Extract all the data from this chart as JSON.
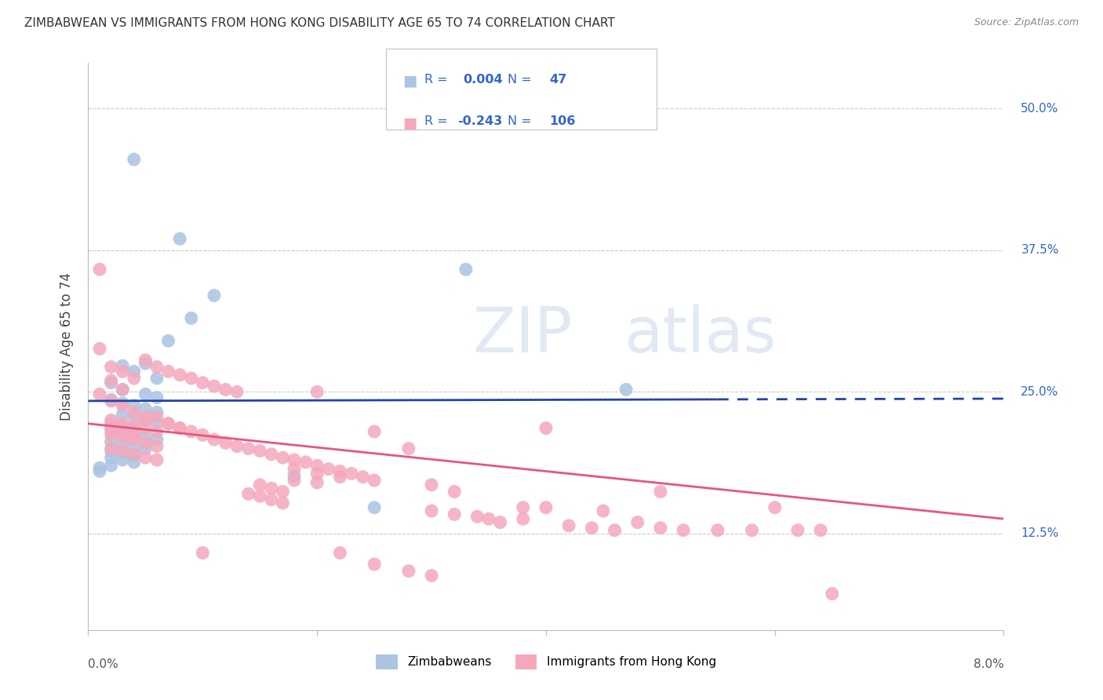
{
  "title": "ZIMBABWEAN VS IMMIGRANTS FROM HONG KONG DISABILITY AGE 65 TO 74 CORRELATION CHART",
  "source": "Source: ZipAtlas.com",
  "ylabel": "Disability Age 65 to 74",
  "ytick_labels": [
    "12.5%",
    "25.0%",
    "37.5%",
    "50.0%"
  ],
  "ytick_values": [
    0.125,
    0.25,
    0.375,
    0.5
  ],
  "xlim": [
    0.0,
    0.08
  ],
  "ylim": [
    0.04,
    0.54
  ],
  "zim_color": "#aac4e2",
  "hk_color": "#f5a8bc",
  "zim_line_color": "#2244aa",
  "hk_line_color": "#e85580",
  "zim_R": 0.004,
  "zim_N": 47,
  "hk_R": -0.243,
  "hk_N": 106,
  "watermark": "ZIPatlas",
  "legend_text_color": "#3366cc",
  "legend_border_color": "#cccccc",
  "grid_color": "#cccccc",
  "zim_line_y0": 0.242,
  "zim_line_y1": 0.244,
  "hk_line_y0": 0.222,
  "hk_line_y1": 0.138,
  "zim_data": [
    [
      0.004,
      0.455
    ],
    [
      0.008,
      0.385
    ],
    [
      0.011,
      0.335
    ],
    [
      0.009,
      0.315
    ],
    [
      0.007,
      0.295
    ],
    [
      0.005,
      0.275
    ],
    [
      0.003,
      0.273
    ],
    [
      0.004,
      0.268
    ],
    [
      0.006,
      0.262
    ],
    [
      0.002,
      0.258
    ],
    [
      0.003,
      0.252
    ],
    [
      0.005,
      0.248
    ],
    [
      0.006,
      0.245
    ],
    [
      0.002,
      0.243
    ],
    [
      0.003,
      0.24
    ],
    [
      0.004,
      0.238
    ],
    [
      0.005,
      0.235
    ],
    [
      0.006,
      0.232
    ],
    [
      0.003,
      0.23
    ],
    [
      0.004,
      0.228
    ],
    [
      0.005,
      0.225
    ],
    [
      0.006,
      0.223
    ],
    [
      0.002,
      0.222
    ],
    [
      0.003,
      0.22
    ],
    [
      0.004,
      0.218
    ],
    [
      0.002,
      0.216
    ],
    [
      0.003,
      0.214
    ],
    [
      0.004,
      0.212
    ],
    [
      0.005,
      0.21
    ],
    [
      0.006,
      0.208
    ],
    [
      0.002,
      0.206
    ],
    [
      0.003,
      0.204
    ],
    [
      0.004,
      0.202
    ],
    [
      0.005,
      0.2
    ],
    [
      0.002,
      0.198
    ],
    [
      0.003,
      0.196
    ],
    [
      0.004,
      0.194
    ],
    [
      0.002,
      0.192
    ],
    [
      0.003,
      0.19
    ],
    [
      0.004,
      0.188
    ],
    [
      0.018,
      0.176
    ],
    [
      0.002,
      0.185
    ],
    [
      0.001,
      0.183
    ],
    [
      0.001,
      0.18
    ],
    [
      0.025,
      0.148
    ],
    [
      0.033,
      0.358
    ],
    [
      0.047,
      0.252
    ]
  ],
  "hk_data": [
    [
      0.001,
      0.358
    ],
    [
      0.001,
      0.288
    ],
    [
      0.002,
      0.272
    ],
    [
      0.003,
      0.268
    ],
    [
      0.004,
      0.262
    ],
    [
      0.005,
      0.278
    ],
    [
      0.006,
      0.272
    ],
    [
      0.007,
      0.268
    ],
    [
      0.008,
      0.265
    ],
    [
      0.009,
      0.262
    ],
    [
      0.01,
      0.258
    ],
    [
      0.011,
      0.255
    ],
    [
      0.012,
      0.252
    ],
    [
      0.013,
      0.25
    ],
    [
      0.002,
      0.26
    ],
    [
      0.003,
      0.252
    ],
    [
      0.001,
      0.248
    ],
    [
      0.002,
      0.242
    ],
    [
      0.003,
      0.238
    ],
    [
      0.004,
      0.232
    ],
    [
      0.005,
      0.228
    ],
    [
      0.002,
      0.225
    ],
    [
      0.003,
      0.222
    ],
    [
      0.004,
      0.22
    ],
    [
      0.005,
      0.218
    ],
    [
      0.006,
      0.215
    ],
    [
      0.002,
      0.212
    ],
    [
      0.003,
      0.21
    ],
    [
      0.004,
      0.208
    ],
    [
      0.005,
      0.205
    ],
    [
      0.006,
      0.202
    ],
    [
      0.002,
      0.2
    ],
    [
      0.003,
      0.198
    ],
    [
      0.004,
      0.195
    ],
    [
      0.005,
      0.192
    ],
    [
      0.006,
      0.19
    ],
    [
      0.007,
      0.222
    ],
    [
      0.008,
      0.218
    ],
    [
      0.002,
      0.218
    ],
    [
      0.003,
      0.215
    ],
    [
      0.004,
      0.212
    ],
    [
      0.005,
      0.225
    ],
    [
      0.006,
      0.228
    ],
    [
      0.007,
      0.222
    ],
    [
      0.008,
      0.218
    ],
    [
      0.009,
      0.215
    ],
    [
      0.01,
      0.212
    ],
    [
      0.011,
      0.208
    ],
    [
      0.012,
      0.205
    ],
    [
      0.013,
      0.202
    ],
    [
      0.014,
      0.2
    ],
    [
      0.015,
      0.198
    ],
    [
      0.016,
      0.195
    ],
    [
      0.017,
      0.192
    ],
    [
      0.018,
      0.19
    ],
    [
      0.019,
      0.188
    ],
    [
      0.02,
      0.185
    ],
    [
      0.021,
      0.182
    ],
    [
      0.022,
      0.18
    ],
    [
      0.023,
      0.178
    ],
    [
      0.024,
      0.175
    ],
    [
      0.025,
      0.172
    ],
    [
      0.018,
      0.182
    ],
    [
      0.02,
      0.178
    ],
    [
      0.022,
      0.175
    ],
    [
      0.018,
      0.172
    ],
    [
      0.02,
      0.17
    ],
    [
      0.015,
      0.168
    ],
    [
      0.016,
      0.165
    ],
    [
      0.017,
      0.162
    ],
    [
      0.014,
      0.16
    ],
    [
      0.015,
      0.158
    ],
    [
      0.016,
      0.155
    ],
    [
      0.017,
      0.152
    ],
    [
      0.02,
      0.25
    ],
    [
      0.025,
      0.215
    ],
    [
      0.028,
      0.2
    ],
    [
      0.03,
      0.168
    ],
    [
      0.032,
      0.162
    ],
    [
      0.03,
      0.145
    ],
    [
      0.032,
      0.142
    ],
    [
      0.034,
      0.14
    ],
    [
      0.035,
      0.138
    ],
    [
      0.036,
      0.135
    ],
    [
      0.038,
      0.148
    ],
    [
      0.038,
      0.138
    ],
    [
      0.04,
      0.218
    ],
    [
      0.04,
      0.148
    ],
    [
      0.042,
      0.132
    ],
    [
      0.044,
      0.13
    ],
    [
      0.045,
      0.145
    ],
    [
      0.046,
      0.128
    ],
    [
      0.048,
      0.135
    ],
    [
      0.05,
      0.162
    ],
    [
      0.05,
      0.13
    ],
    [
      0.052,
      0.128
    ],
    [
      0.055,
      0.128
    ],
    [
      0.058,
      0.128
    ],
    [
      0.06,
      0.148
    ],
    [
      0.062,
      0.128
    ],
    [
      0.064,
      0.128
    ],
    [
      0.065,
      0.072
    ],
    [
      0.01,
      0.108
    ],
    [
      0.022,
      0.108
    ],
    [
      0.025,
      0.098
    ],
    [
      0.028,
      0.092
    ],
    [
      0.03,
      0.088
    ]
  ]
}
